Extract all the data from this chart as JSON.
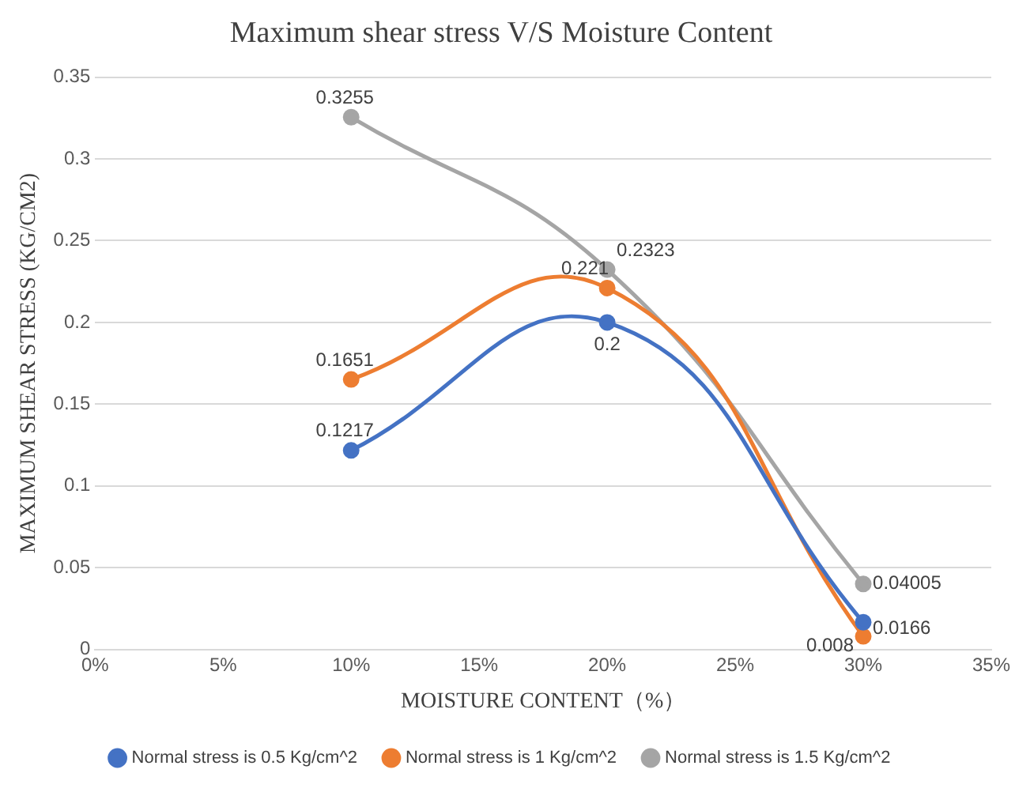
{
  "chart_data": {
    "type": "line",
    "title": "Maximum shear stress V/S Moisture Content",
    "xlabel": "MOISTURE CONTENT（%）",
    "ylabel": "MAXIMUM SHEAR STRESS (KG/CM2)",
    "x": [
      10,
      20,
      30
    ],
    "series": [
      {
        "name": "Normal stress is 0.5 Kg/cm^2",
        "color": "#4472c4",
        "values": [
          0.1217,
          0.2,
          0.0166
        ]
      },
      {
        "name": "Normal stress is 1 Kg/cm^2",
        "color": "#ed7d31",
        "values": [
          0.1651,
          0.221,
          0.008
        ]
      },
      {
        "name": "Normal stress is 1.5 Kg/cm^2",
        "color": "#a5a5a5",
        "values": [
          0.3255,
          0.2323,
          0.04005
        ]
      }
    ],
    "xlim": [
      0,
      35
    ],
    "xticks": [
      {
        "value": 0,
        "label": "0%"
      },
      {
        "value": 5,
        "label": "5%"
      },
      {
        "value": 10,
        "label": "10%"
      },
      {
        "value": 15,
        "label": "15%"
      },
      {
        "value": 20,
        "label": "20%"
      },
      {
        "value": 25,
        "label": "25%"
      },
      {
        "value": 30,
        "label": "30%"
      },
      {
        "value": 35,
        "label": "35%"
      }
    ],
    "ylim": [
      0,
      0.35
    ],
    "yticks": [
      0,
      0.05,
      0.1,
      0.15,
      0.2,
      0.25,
      0.3,
      0.35
    ],
    "grid": "y",
    "legend": "bottom",
    "marker": "circle",
    "line_style": "solid",
    "data_labels": true
  }
}
